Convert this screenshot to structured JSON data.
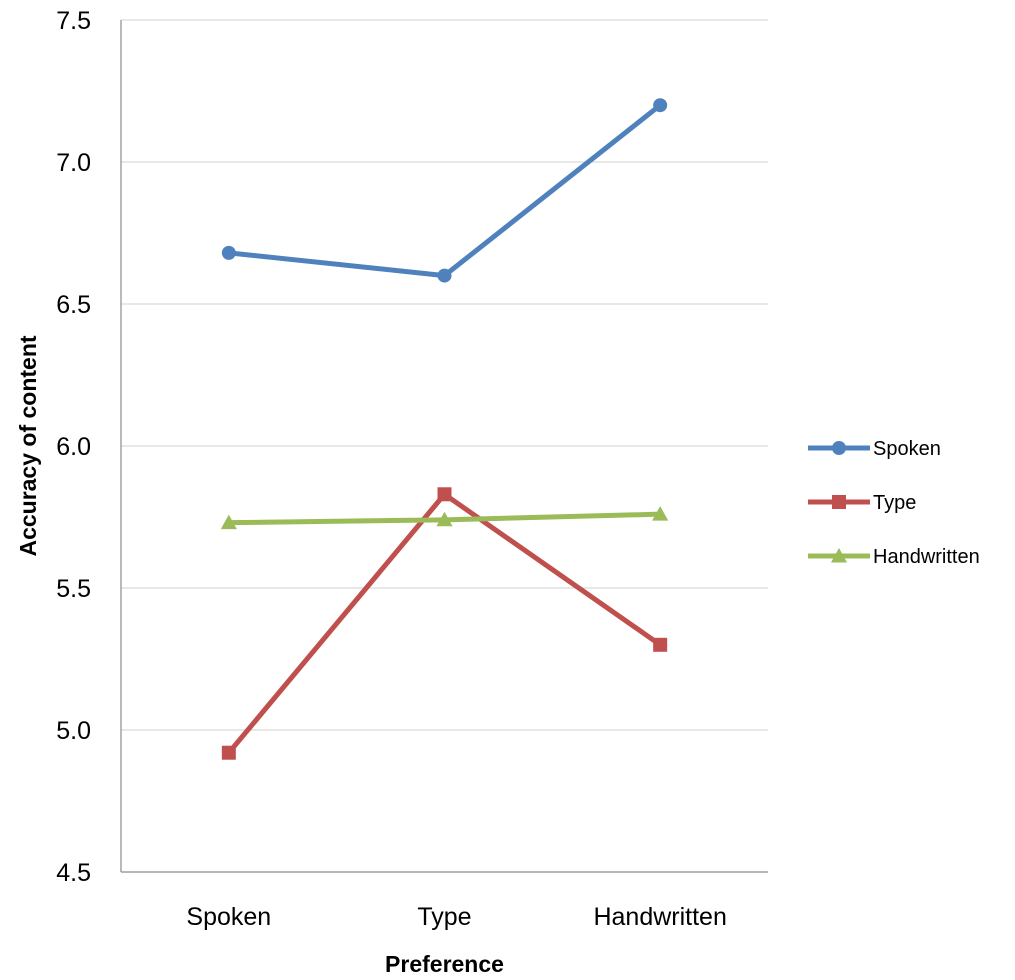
{
  "chart_data": {
    "type": "line",
    "title": "",
    "xlabel": "Preference",
    "ylabel": "Accuracy of content",
    "categories": [
      "Spoken",
      "Type",
      "Handwritten"
    ],
    "ylim": [
      4.5,
      7.5
    ],
    "yticks": [
      "4.5",
      "5.0",
      "5.5",
      "6.0",
      "6.5",
      "7.0",
      "7.5"
    ],
    "ytick_values": [
      4.5,
      5.0,
      5.5,
      6.0,
      6.5,
      7.0,
      7.5
    ],
    "grid": "horizontal",
    "legend_position": "right",
    "series": [
      {
        "name": "Spoken",
        "values": [
          6.68,
          6.6,
          7.2
        ],
        "color": "#4F81BD",
        "marker": "circle"
      },
      {
        "name": "Type",
        "values": [
          4.92,
          5.83,
          5.3
        ],
        "color": "#C0504D",
        "marker": "square"
      },
      {
        "name": "Handwritten",
        "values": [
          5.73,
          5.74,
          5.76
        ],
        "color": "#9BBB59",
        "marker": "triangle"
      }
    ]
  }
}
